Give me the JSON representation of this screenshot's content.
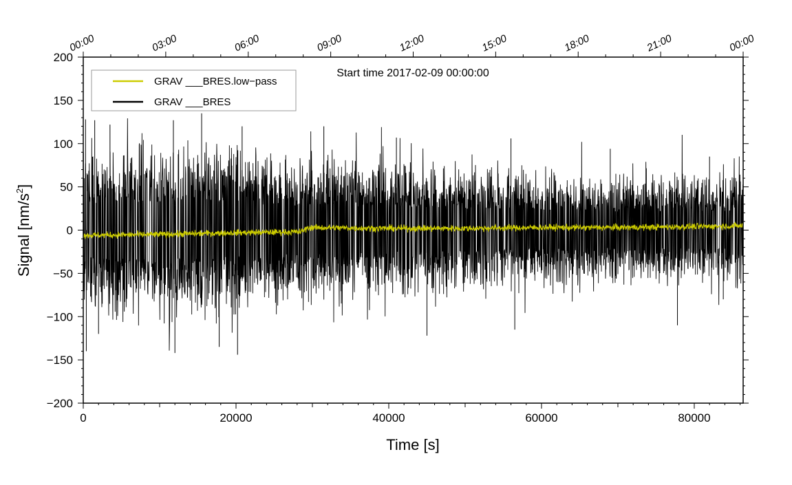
{
  "chart_data": {
    "type": "line",
    "annotation": "Start time 2017-02-09 00:00:00",
    "xlabel": "Time [s]",
    "ylabel_prefix": "Signal [nm/s",
    "ylabel_sup": "2",
    "ylabel_suffix": "]",
    "xlim": [
      0,
      86400
    ],
    "ylim": [
      -200,
      200
    ],
    "x_ticks": [
      {
        "value": 0,
        "label": "0"
      },
      {
        "value": 20000,
        "label": "20000"
      },
      {
        "value": 40000,
        "label": "40000"
      },
      {
        "value": 60000,
        "label": "60000"
      },
      {
        "value": 80000,
        "label": "80000"
      }
    ],
    "y_ticks": [
      {
        "value": 200,
        "label": "200"
      },
      {
        "value": 150,
        "label": "150"
      },
      {
        "value": 100,
        "label": "100"
      },
      {
        "value": 50,
        "label": "50"
      },
      {
        "value": 0,
        "label": "0"
      },
      {
        "value": -50,
        "label": "−50"
      },
      {
        "value": -100,
        "label": "−100"
      },
      {
        "value": -150,
        "label": "−150"
      },
      {
        "value": -200,
        "label": "−200"
      }
    ],
    "top_ticks": [
      {
        "value": 0,
        "label": "00:00"
      },
      {
        "value": 10800,
        "label": "03:00"
      },
      {
        "value": 21600,
        "label": "06:00"
      },
      {
        "value": 32400,
        "label": "09:00"
      },
      {
        "value": 43200,
        "label": "12:00"
      },
      {
        "value": 54000,
        "label": "15:00"
      },
      {
        "value": 64800,
        "label": "18:00"
      },
      {
        "value": 75600,
        "label": "21:00"
      },
      {
        "value": 86400,
        "label": "00:00"
      }
    ],
    "legend": {
      "placement": "top-left",
      "entries": [
        {
          "label": "GRAV ___BRES.low−pass",
          "color": "#cccc00"
        },
        {
          "label": "GRAV ___BRES",
          "color": "#000000"
        }
      ]
    },
    "series": [
      {
        "name": "GRAV ___BRES",
        "color": "#000000",
        "envelope_x": [
          0,
          5000,
          10000,
          15000,
          20000,
          25000,
          29000,
          35000,
          40000,
          45000,
          50000,
          55000,
          60000,
          65000,
          70000,
          75000,
          80000,
          86400
        ],
        "envelope_upper_typical": [
          55,
          60,
          58,
          60,
          55,
          52,
          50,
          50,
          48,
          45,
          45,
          42,
          40,
          38,
          38,
          40,
          40,
          40
        ],
        "envelope_lower_typical": [
          -55,
          -60,
          -58,
          -60,
          -55,
          -52,
          -50,
          -48,
          -46,
          -44,
          -43,
          -40,
          -38,
          -36,
          -36,
          -38,
          -38,
          -38
        ],
        "spikes": [
          {
            "x": 300,
            "y": 128
          },
          {
            "x": 1500,
            "y": 127
          },
          {
            "x": 3500,
            "y": 122
          },
          {
            "x": 15500,
            "y": 135
          },
          {
            "x": 11800,
            "y": 127
          },
          {
            "x": 20800,
            "y": 120
          },
          {
            "x": 31500,
            "y": 120
          },
          {
            "x": 41000,
            "y": 107
          },
          {
            "x": 56000,
            "y": 106
          },
          {
            "x": 69000,
            "y": 94
          },
          {
            "x": 82000,
            "y": 85
          },
          {
            "x": 400,
            "y": -140
          },
          {
            "x": 2000,
            "y": -120
          },
          {
            "x": 12000,
            "y": -142
          },
          {
            "x": 20200,
            "y": -144
          },
          {
            "x": 17800,
            "y": -135
          },
          {
            "x": 45000,
            "y": -122
          },
          {
            "x": 56500,
            "y": -115
          },
          {
            "x": 77800,
            "y": -110
          },
          {
            "x": 83800,
            "y": -80
          }
        ]
      },
      {
        "name": "GRAV ___BRES.low−pass",
        "color": "#cccc00",
        "x": [
          0,
          10000,
          20000,
          28500,
          29500,
          40000,
          50000,
          60000,
          70000,
          80000,
          86400
        ],
        "y": [
          -6,
          -5,
          -3,
          -2,
          3,
          2,
          2,
          3,
          3,
          4,
          5
        ],
        "noise_amplitude": 3
      }
    ]
  }
}
